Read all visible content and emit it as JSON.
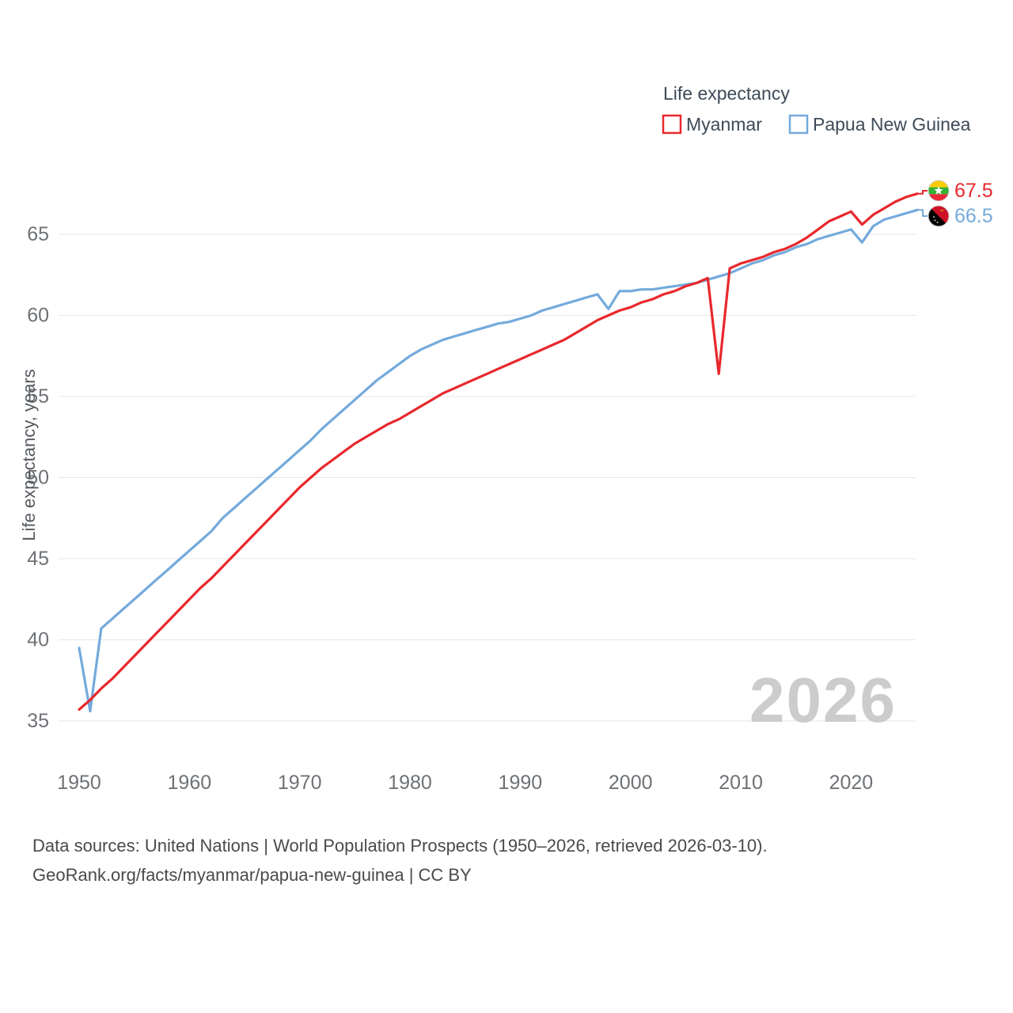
{
  "legend": {
    "title": "Life expectancy",
    "items": [
      {
        "label": "Myanmar",
        "color": "#e8282d"
      },
      {
        "label": "Papua New Guinea",
        "color": "#74aadc"
      }
    ]
  },
  "end_labels": [
    {
      "value": "67.5",
      "color": "#e8282d",
      "flag": "myanmar-flag-icon"
    },
    {
      "value": "66.5",
      "color": "#74aadc",
      "flag": "papua-new-guinea-flag-icon"
    }
  ],
  "watermark": "2026",
  "footer": {
    "line1": "Data sources: United Nations | World Population Prospects (1950–2026, retrieved 2026-03-10).",
    "line2": "GeoRank.org/facts/myanmar/papua-new-guinea | CC BY"
  },
  "chart_data": {
    "type": "line",
    "title": "Life expectancy",
    "ylabel": "Life expectancy, years",
    "xlabel": "",
    "ylim": [
      35,
      68
    ],
    "xlim": [
      1950,
      2026
    ],
    "yticks": [
      35,
      40,
      45,
      50,
      55,
      60,
      65
    ],
    "xticks": [
      1950,
      1960,
      1970,
      1980,
      1990,
      2000,
      2010,
      2020
    ],
    "grid": "horizontal",
    "legend_position": "top-right",
    "years": [
      1950,
      1951,
      1952,
      1953,
      1954,
      1955,
      1956,
      1957,
      1958,
      1959,
      1960,
      1961,
      1962,
      1963,
      1964,
      1965,
      1966,
      1967,
      1968,
      1969,
      1970,
      1971,
      1972,
      1973,
      1974,
      1975,
      1976,
      1977,
      1978,
      1979,
      1980,
      1981,
      1982,
      1983,
      1984,
      1985,
      1986,
      1987,
      1988,
      1989,
      1990,
      1991,
      1992,
      1993,
      1994,
      1995,
      1996,
      1997,
      1998,
      1999,
      2000,
      2001,
      2002,
      2003,
      2004,
      2005,
      2006,
      2007,
      2008,
      2009,
      2010,
      2011,
      2012,
      2013,
      2014,
      2015,
      2016,
      2017,
      2018,
      2019,
      2020,
      2021,
      2022,
      2023,
      2024,
      2025,
      2026
    ],
    "series": [
      {
        "name": "Myanmar",
        "slug": "myanmar",
        "color": "#e8282d",
        "end_value": 67.5,
        "values": [
          35.7,
          36.3,
          37.0,
          37.6,
          38.3,
          39.0,
          39.7,
          40.4,
          41.1,
          41.8,
          42.5,
          43.2,
          43.8,
          44.5,
          45.2,
          45.9,
          46.6,
          47.3,
          48.0,
          48.7,
          49.4,
          50.0,
          50.6,
          51.1,
          51.6,
          52.1,
          52.5,
          52.9,
          53.3,
          53.6,
          54.0,
          54.4,
          54.8,
          55.2,
          55.5,
          55.8,
          56.1,
          56.4,
          56.7,
          57.0,
          57.3,
          57.6,
          57.9,
          58.2,
          58.5,
          58.9,
          59.3,
          59.7,
          60.0,
          60.3,
          60.5,
          60.8,
          61.0,
          61.3,
          61.5,
          61.8,
          62.0,
          62.3,
          56.4,
          62.9,
          63.2,
          63.4,
          63.6,
          63.9,
          64.1,
          64.4,
          64.8,
          65.3,
          65.8,
          66.1,
          66.4,
          65.6,
          66.2,
          66.6,
          67.0,
          67.3,
          67.5
        ]
      },
      {
        "name": "Papua New Guinea",
        "slug": "papua-new-guinea",
        "color": "#74aadc",
        "end_value": 66.5,
        "values": [
          39.5,
          35.6,
          40.7,
          41.3,
          41.9,
          42.5,
          43.1,
          43.7,
          44.3,
          44.9,
          45.5,
          46.1,
          46.7,
          47.5,
          48.1,
          48.7,
          49.3,
          49.9,
          50.5,
          51.1,
          51.7,
          52.3,
          53.0,
          53.6,
          54.2,
          54.8,
          55.4,
          56.0,
          56.5,
          57.0,
          57.5,
          57.9,
          58.2,
          58.5,
          58.7,
          58.9,
          59.1,
          59.3,
          59.5,
          59.6,
          59.8,
          60.0,
          60.3,
          60.5,
          60.7,
          60.9,
          61.1,
          61.3,
          60.4,
          61.5,
          61.5,
          61.6,
          61.6,
          61.7,
          61.8,
          61.9,
          62.0,
          62.2,
          62.4,
          62.6,
          62.9,
          63.2,
          63.4,
          63.7,
          63.9,
          64.2,
          64.4,
          64.7,
          64.9,
          65.1,
          65.3,
          64.5,
          65.5,
          65.9,
          66.1,
          66.3,
          66.5
        ]
      }
    ]
  }
}
